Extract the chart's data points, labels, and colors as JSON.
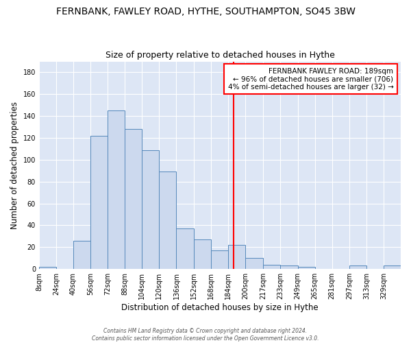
{
  "title": "FERNBANK, FAWLEY ROAD, HYTHE, SOUTHAMPTON, SO45 3BW",
  "subtitle": "Size of property relative to detached houses in Hythe",
  "xlabel": "Distribution of detached houses by size in Hythe",
  "ylabel": "Number of detached properties",
  "bin_edges": [
    8,
    24,
    40,
    56,
    72,
    88,
    104,
    120,
    136,
    152,
    168,
    184,
    200,
    217,
    233,
    249,
    265,
    281,
    297,
    313,
    329,
    345
  ],
  "bar_heights": [
    2,
    0,
    26,
    122,
    145,
    128,
    109,
    89,
    37,
    27,
    17,
    22,
    10,
    4,
    3,
    2,
    0,
    0,
    3,
    0,
    3
  ],
  "bar_color": "#ccd9ee",
  "bar_edgecolor": "#5588bb",
  "vline_x": 189,
  "vline_color": "red",
  "ylim": [
    0,
    190
  ],
  "yticks": [
    0,
    20,
    40,
    60,
    80,
    100,
    120,
    140,
    160,
    180
  ],
  "x_tick_labels": [
    "8sqm",
    "24sqm",
    "40sqm",
    "56sqm",
    "72sqm",
    "88sqm",
    "104sqm",
    "120sqm",
    "136sqm",
    "152sqm",
    "168sqm",
    "184sqm",
    "200sqm",
    "217sqm",
    "233sqm",
    "249sqm",
    "265sqm",
    "281sqm",
    "297sqm",
    "313sqm",
    "329sqm"
  ],
  "annotation_title": "FERNBANK FAWLEY ROAD: 189sqm",
  "annotation_line1": "← 96% of detached houses are smaller (706)",
  "annotation_line2": "4% of semi-detached houses are larger (32) →",
  "footer1": "Contains HM Land Registry data © Crown copyright and database right 2024.",
  "footer2": "Contains public sector information licensed under the Open Government Licence v3.0.",
  "bg_color": "#ffffff",
  "plot_bg_color": "#dde6f5",
  "title_fontsize": 10,
  "subtitle_fontsize": 9,
  "axis_label_fontsize": 8.5,
  "tick_fontsize": 7
}
